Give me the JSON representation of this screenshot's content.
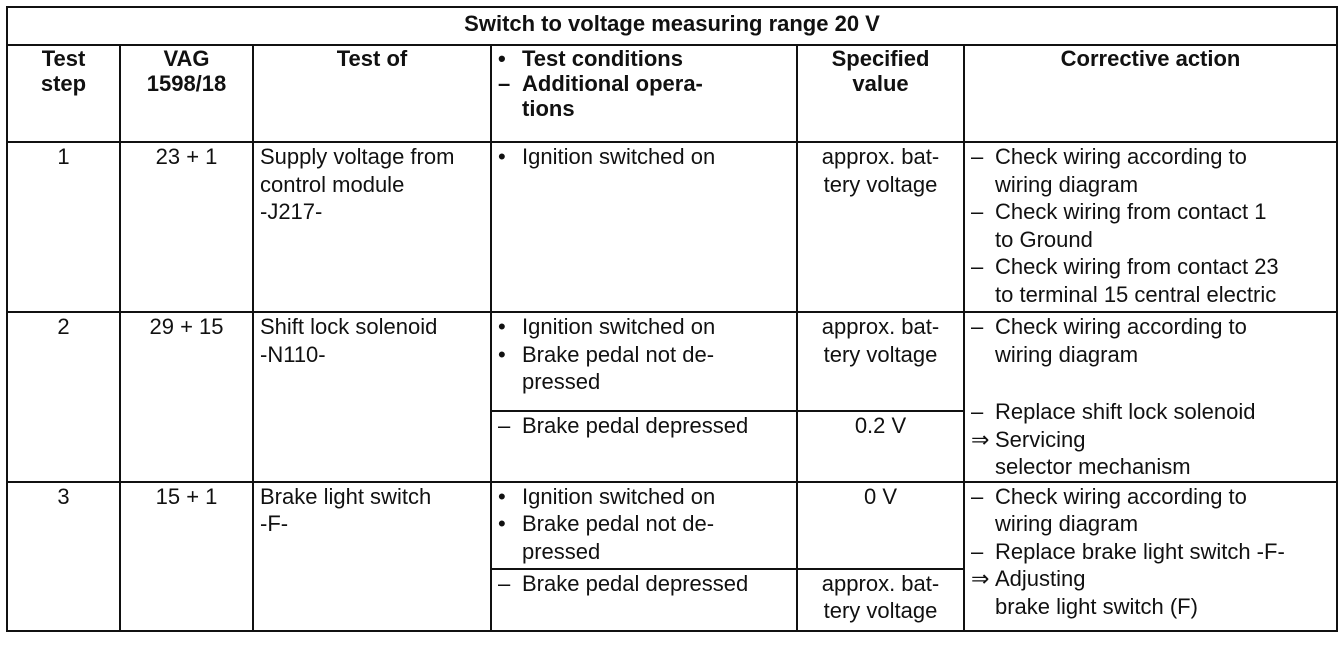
{
  "table": {
    "banner": "Switch to voltage measuring range 20 V",
    "headers": {
      "test_step": [
        "Test",
        "step"
      ],
      "vag": [
        "VAG",
        "1598/18"
      ],
      "test_of": "Test of",
      "conditions_marker_1": "•",
      "conditions_line_1": "Test conditions",
      "conditions_marker_2": "–",
      "conditions_line_2": "Additional opera-",
      "conditions_line_3": "tions",
      "specified": [
        "Specified",
        "value"
      ],
      "corrective": "Corrective action"
    },
    "rows": [
      {
        "step": "1",
        "vag": "23 + 1",
        "test_of": [
          "Supply voltage from",
          "control module",
          "-J217-"
        ],
        "conditions": [
          {
            "marker": "•",
            "lines": [
              "Ignition switched on"
            ]
          }
        ],
        "specified": [
          "approx. bat-",
          "tery voltage"
        ],
        "corrective": [
          {
            "marker": "–",
            "lines": [
              "Check wiring according to",
              "wiring diagram"
            ]
          },
          {
            "marker": "–",
            "lines": [
              "Check wiring from contact 1",
              "to Ground"
            ]
          },
          {
            "marker": "–",
            "lines": [
              "Check wiring from contact 23",
              "to terminal 15 central electric"
            ]
          }
        ]
      },
      {
        "step": "2",
        "vag": "29 + 15",
        "test_of": [
          "Shift lock solenoid",
          "-N110-"
        ],
        "sub": [
          {
            "conditions": [
              {
                "marker": "•",
                "lines": [
                  "Ignition switched on"
                ]
              },
              {
                "marker": "•",
                "lines": [
                  "Brake pedal not de-",
                  "pressed"
                ]
              }
            ],
            "specified": [
              "approx. bat-",
              "tery voltage"
            ],
            "corrective": [
              {
                "marker": "–",
                "lines": [
                  "Check wiring according to",
                  "wiring diagram"
                ]
              }
            ]
          },
          {
            "conditions": [
              {
                "marker": "–",
                "lines": [
                  "Brake pedal depressed"
                ]
              }
            ],
            "specified": [
              "0.2 V"
            ],
            "corrective": [
              {
                "marker": "–",
                "lines": [
                  "Replace shift lock solenoid"
                ]
              },
              {
                "marker": "⇒",
                "lines": [
                  "Servicing",
                  "selector mechanism"
                ]
              }
            ]
          }
        ]
      },
      {
        "step": "3",
        "vag": "15 + 1",
        "test_of": [
          "Brake light switch",
          "-F-"
        ],
        "sub": [
          {
            "conditions": [
              {
                "marker": "•",
                "lines": [
                  "Ignition switched on"
                ]
              },
              {
                "marker": "•",
                "lines": [
                  "Brake pedal not de-",
                  "pressed"
                ]
              }
            ],
            "specified": [
              "0 V"
            ],
            "corrective": [
              {
                "marker": "–",
                "lines": [
                  "Check wiring according to",
                  "wiring diagram"
                ]
              },
              {
                "marker": "–",
                "lines": [
                  "Replace brake light switch -F-"
                ]
              }
            ]
          },
          {
            "conditions": [
              {
                "marker": "–",
                "lines": [
                  "Brake pedal depressed"
                ]
              }
            ],
            "specified": [
              "approx. bat-",
              "tery voltage"
            ],
            "corrective": [
              {
                "marker": "⇒",
                "lines": [
                  "Adjusting",
                  "brake light switch (F)"
                ]
              }
            ]
          }
        ]
      }
    ]
  }
}
